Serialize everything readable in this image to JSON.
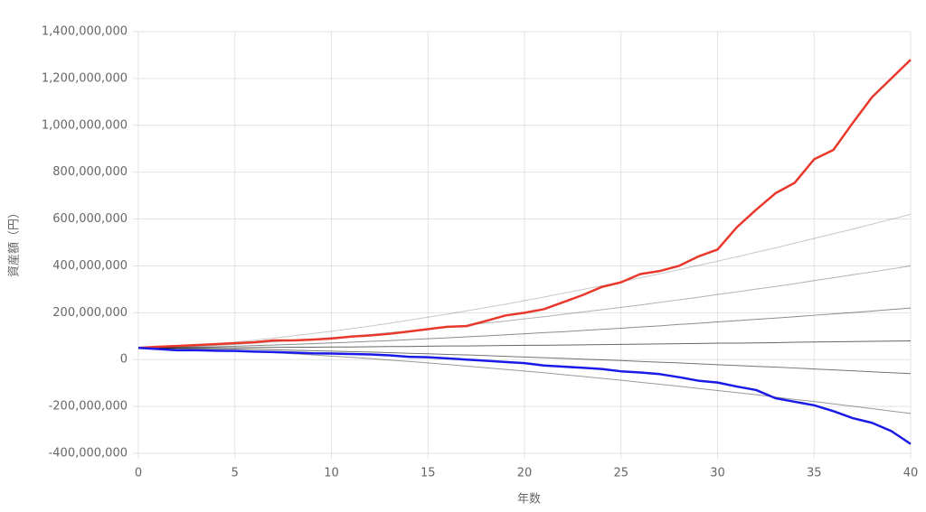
{
  "chart_data": {
    "type": "line",
    "x_label": "年数",
    "y_label": "資産額（円）",
    "x": [
      0,
      1,
      2,
      3,
      4,
      5,
      6,
      7,
      8,
      9,
      10,
      11,
      12,
      13,
      14,
      15,
      16,
      17,
      18,
      19,
      20,
      21,
      22,
      23,
      24,
      25,
      26,
      27,
      28,
      29,
      30,
      31,
      32,
      33,
      34,
      35,
      36,
      37,
      38,
      39,
      40
    ],
    "xlim": [
      0,
      40
    ],
    "xticks": [
      0,
      5,
      10,
      15,
      20,
      25,
      30,
      35,
      40
    ],
    "ylim": [
      -400000000,
      1400000000
    ],
    "yticks": [
      {
        "value": -400000000,
        "label": "-400,000,000"
      },
      {
        "value": -200000000,
        "label": "-200,000,000"
      },
      0,
      {
        "value": 200000000,
        "label": "200,000,000"
      },
      {
        "value": 400000000,
        "label": "400,000,000"
      },
      {
        "value": 600000000,
        "label": "600,000,000"
      },
      {
        "value": 800000000,
        "label": "800,000,000"
      },
      {
        "value": 1000000000,
        "label": "1,000,000,000"
      },
      {
        "value": 1200000000,
        "label": "1,200,000,000"
      },
      {
        "value": 1400000000,
        "label": "1,400,000,000"
      }
    ],
    "grid": true,
    "series": [
      {
        "color": "rgba(0,0,0,0.22)",
        "values": [
          50000000,
          52000000,
          56000000,
          62000000,
          68000000,
          75000000,
          83000000,
          92000000,
          101000000,
          111000000,
          121000000,
          132000000,
          143000000,
          155000000,
          168000000,
          181000000,
          194000000,
          208000000,
          222000000,
          236000000,
          252000000,
          267000000,
          283000000,
          299000000,
          315000000,
          332000000,
          349000000,
          366000000,
          384000000,
          402000000,
          420000000,
          439000000,
          458000000,
          477000000,
          497000000,
          517000000,
          537000000,
          557000000,
          578000000,
          599000000,
          620000000
        ]
      },
      {
        "color": "rgba(0,0,0,0.3)",
        "values": [
          50000000,
          51000000,
          54000000,
          57000000,
          61000000,
          65000000,
          70000000,
          76000000,
          81000000,
          87000000,
          94000000,
          100000000,
          107000000,
          115000000,
          122000000,
          130000000,
          139000000,
          147000000,
          156000000,
          164000000,
          174000000,
          183000000,
          193000000,
          203000000,
          213000000,
          223000000,
          233000000,
          244000000,
          255000000,
          266000000,
          278000000,
          289000000,
          301000000,
          312000000,
          324000000,
          337000000,
          349000000,
          362000000,
          374000000,
          387000000,
          400000000
        ]
      },
      {
        "color": "rgba(0,0,0,0.45)",
        "values": [
          50000000,
          51000000,
          52000000,
          54000000,
          55000000,
          57000000,
          60000000,
          62000000,
          65000000,
          68000000,
          71000000,
          74000000,
          78000000,
          81000000,
          85000000,
          89000000,
          93000000,
          97000000,
          101000000,
          106000000,
          110000000,
          115000000,
          119000000,
          124000000,
          129000000,
          134000000,
          139000000,
          144000000,
          150000000,
          155000000,
          161000000,
          166000000,
          172000000,
          177000000,
          183000000,
          189000000,
          195000000,
          201000000,
          207000000,
          214000000,
          220000000
        ]
      },
      {
        "color": "rgba(0,0,0,0.6)",
        "values": [
          50000000,
          50000000,
          50000000,
          51000000,
          51000000,
          51000000,
          52000000,
          52000000,
          53000000,
          53000000,
          54000000,
          54000000,
          55000000,
          56000000,
          56000000,
          57000000,
          58000000,
          58000000,
          59000000,
          60000000,
          61000000,
          61000000,
          62000000,
          63000000,
          64000000,
          65000000,
          66000000,
          67000000,
          68000000,
          69000000,
          70000000,
          70000000,
          71000000,
          72000000,
          74000000,
          75000000,
          76000000,
          77000000,
          78000000,
          79000000,
          80000000
        ]
      },
      {
        "color": "rgba(0,0,0,0.55)",
        "values": [
          50000000,
          50000000,
          49000000,
          48000000,
          46000000,
          45000000,
          44000000,
          42000000,
          40000000,
          38000000,
          36000000,
          34000000,
          32000000,
          30000000,
          27000000,
          25000000,
          22000000,
          20000000,
          17000000,
          14000000,
          11000000,
          8000000,
          5000000,
          2000000,
          -1000000,
          -4000000,
          -8000000,
          -11000000,
          -14000000,
          -18000000,
          -22000000,
          -25000000,
          -29000000,
          -32000000,
          -36000000,
          -40000000,
          -44000000,
          -48000000,
          -52000000,
          -56000000,
          -60000000
        ]
      },
      {
        "color": "rgba(0,0,0,0.4)",
        "values": [
          50000000,
          49000000,
          47000000,
          44000000,
          41000000,
          38000000,
          34000000,
          30000000,
          25000000,
          20000000,
          15000000,
          10000000,
          4000000,
          -2000000,
          -8000000,
          -14000000,
          -21000000,
          -28000000,
          -35000000,
          -42000000,
          -49000000,
          -56000000,
          -64000000,
          -72000000,
          -80000000,
          -88000000,
          -97000000,
          -105000000,
          -114000000,
          -123000000,
          -132000000,
          -141000000,
          -150000000,
          -160000000,
          -170000000,
          -179000000,
          -189000000,
          -199000000,
          -209000000,
          -220000000,
          -230000000
        ]
      },
      {
        "color": "#e8382b",
        "width": 2.5,
        "values": [
          50000000,
          55000000,
          58000000,
          62000000,
          66000000,
          70000000,
          74000000,
          82000000,
          82000000,
          85000000,
          90000000,
          98000000,
          103000000,
          110000000,
          120000000,
          130000000,
          140000000,
          143000000,
          165000000,
          188000000,
          200000000,
          215000000,
          245000000,
          275000000,
          310000000,
          330000000,
          365000000,
          378000000,
          400000000,
          440000000,
          470000000,
          565000000,
          640000000,
          710000000,
          755000000,
          855000000,
          895000000,
          1010000000,
          1120000000,
          1200000000,
          1280000000
        ]
      },
      {
        "color": "#1a1ae6",
        "width": 2.5,
        "values": [
          50000000,
          45000000,
          40000000,
          40000000,
          38000000,
          37000000,
          34000000,
          32000000,
          30000000,
          27000000,
          26000000,
          24000000,
          22000000,
          18000000,
          12000000,
          10000000,
          5000000,
          0,
          -5000000,
          -10000000,
          -15000000,
          -25000000,
          -30000000,
          -35000000,
          -40000000,
          -50000000,
          -55000000,
          -62000000,
          -75000000,
          -90000000,
          -98000000,
          -115000000,
          -130000000,
          -165000000,
          -180000000,
          -195000000,
          -220000000,
          -250000000,
          -270000000,
          -305000000,
          -360000000
        ]
      }
    ]
  }
}
